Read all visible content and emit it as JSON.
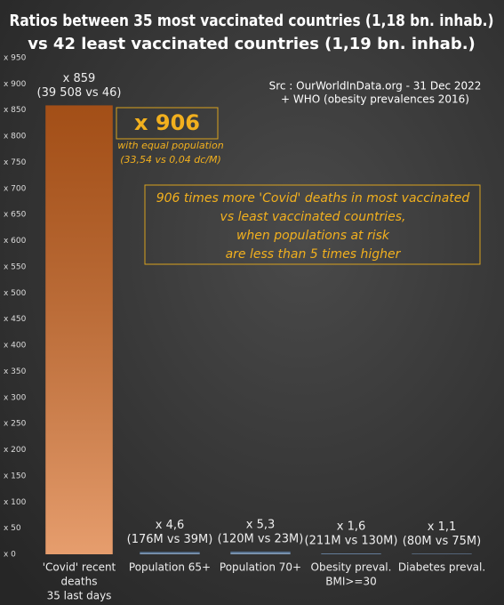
{
  "chart_data": {
    "type": "bar",
    "title": [
      "Ratios between 35 most vaccinated countries (1,18 bn. inhab.)",
      "vs 42 least vaccinated countries (1,19 bn. inhab.)"
    ],
    "source": [
      "Src : OurWorldInData.org - 31 Dec 2022",
      "+ WHO (obesity prevalences 2016)"
    ],
    "categories": [
      [
        "'Covid' recent",
        "deaths",
        "35 last days"
      ],
      [
        "Population 65+"
      ],
      [
        "Population 70+"
      ],
      [
        "Obesity preval.",
        "BMI>=30"
      ],
      [
        "Diabetes preval."
      ]
    ],
    "values": [
      859,
      4.6,
      5.3,
      1.6,
      1.1
    ],
    "value_labels": [
      "x 859",
      "x 4,6",
      "x 5,3",
      "x 1,6",
      "x 1,1"
    ],
    "value_notes": [
      "(39 508 vs 46)",
      "(176M vs 39M)",
      "(120M vs 23M)",
      "(211M vs 130M)",
      "(80M vs 75M)"
    ],
    "colors": [
      "#d9691f",
      "#5b7fa8",
      "#5b7fa8",
      "#5b7fa8",
      "#5b7fa8"
    ],
    "ylim": [
      0,
      950
    ],
    "yticks": [
      {
        "value": 0,
        "label": "x 0"
      },
      {
        "value": 50,
        "label": "x 50"
      },
      {
        "value": 100,
        "label": "x 100"
      },
      {
        "value": 150,
        "label": "x 150"
      },
      {
        "value": 200,
        "label": "x 200"
      },
      {
        "value": 250,
        "label": "x 250"
      },
      {
        "value": 300,
        "label": "x 300"
      },
      {
        "value": 350,
        "label": "x 350"
      },
      {
        "value": 400,
        "label": "x 400"
      },
      {
        "value": 450,
        "label": "x 450"
      },
      {
        "value": 500,
        "label": "x 500"
      },
      {
        "value": 550,
        "label": "x 550"
      },
      {
        "value": 600,
        "label": "x 600"
      },
      {
        "value": 650,
        "label": "x 650"
      },
      {
        "value": 700,
        "label": "x 700"
      },
      {
        "value": 750,
        "label": "x 750"
      },
      {
        "value": 800,
        "label": "x 800"
      },
      {
        "value": 850,
        "label": "x 850"
      },
      {
        "value": 900,
        "label": "x 900"
      },
      {
        "value": 950,
        "label": "x 950"
      }
    ],
    "grid": false,
    "annotations": {
      "ratio": "x 906",
      "ratio_note": [
        "with equal population",
        "(33,54 vs 0,04 dc/M)"
      ],
      "box": [
        "906 times more 'Covid' deaths in most vaccinated",
        "vs least vaccinated countries,",
        "when populations at risk",
        "are less than 5 times higher"
      ]
    }
  }
}
